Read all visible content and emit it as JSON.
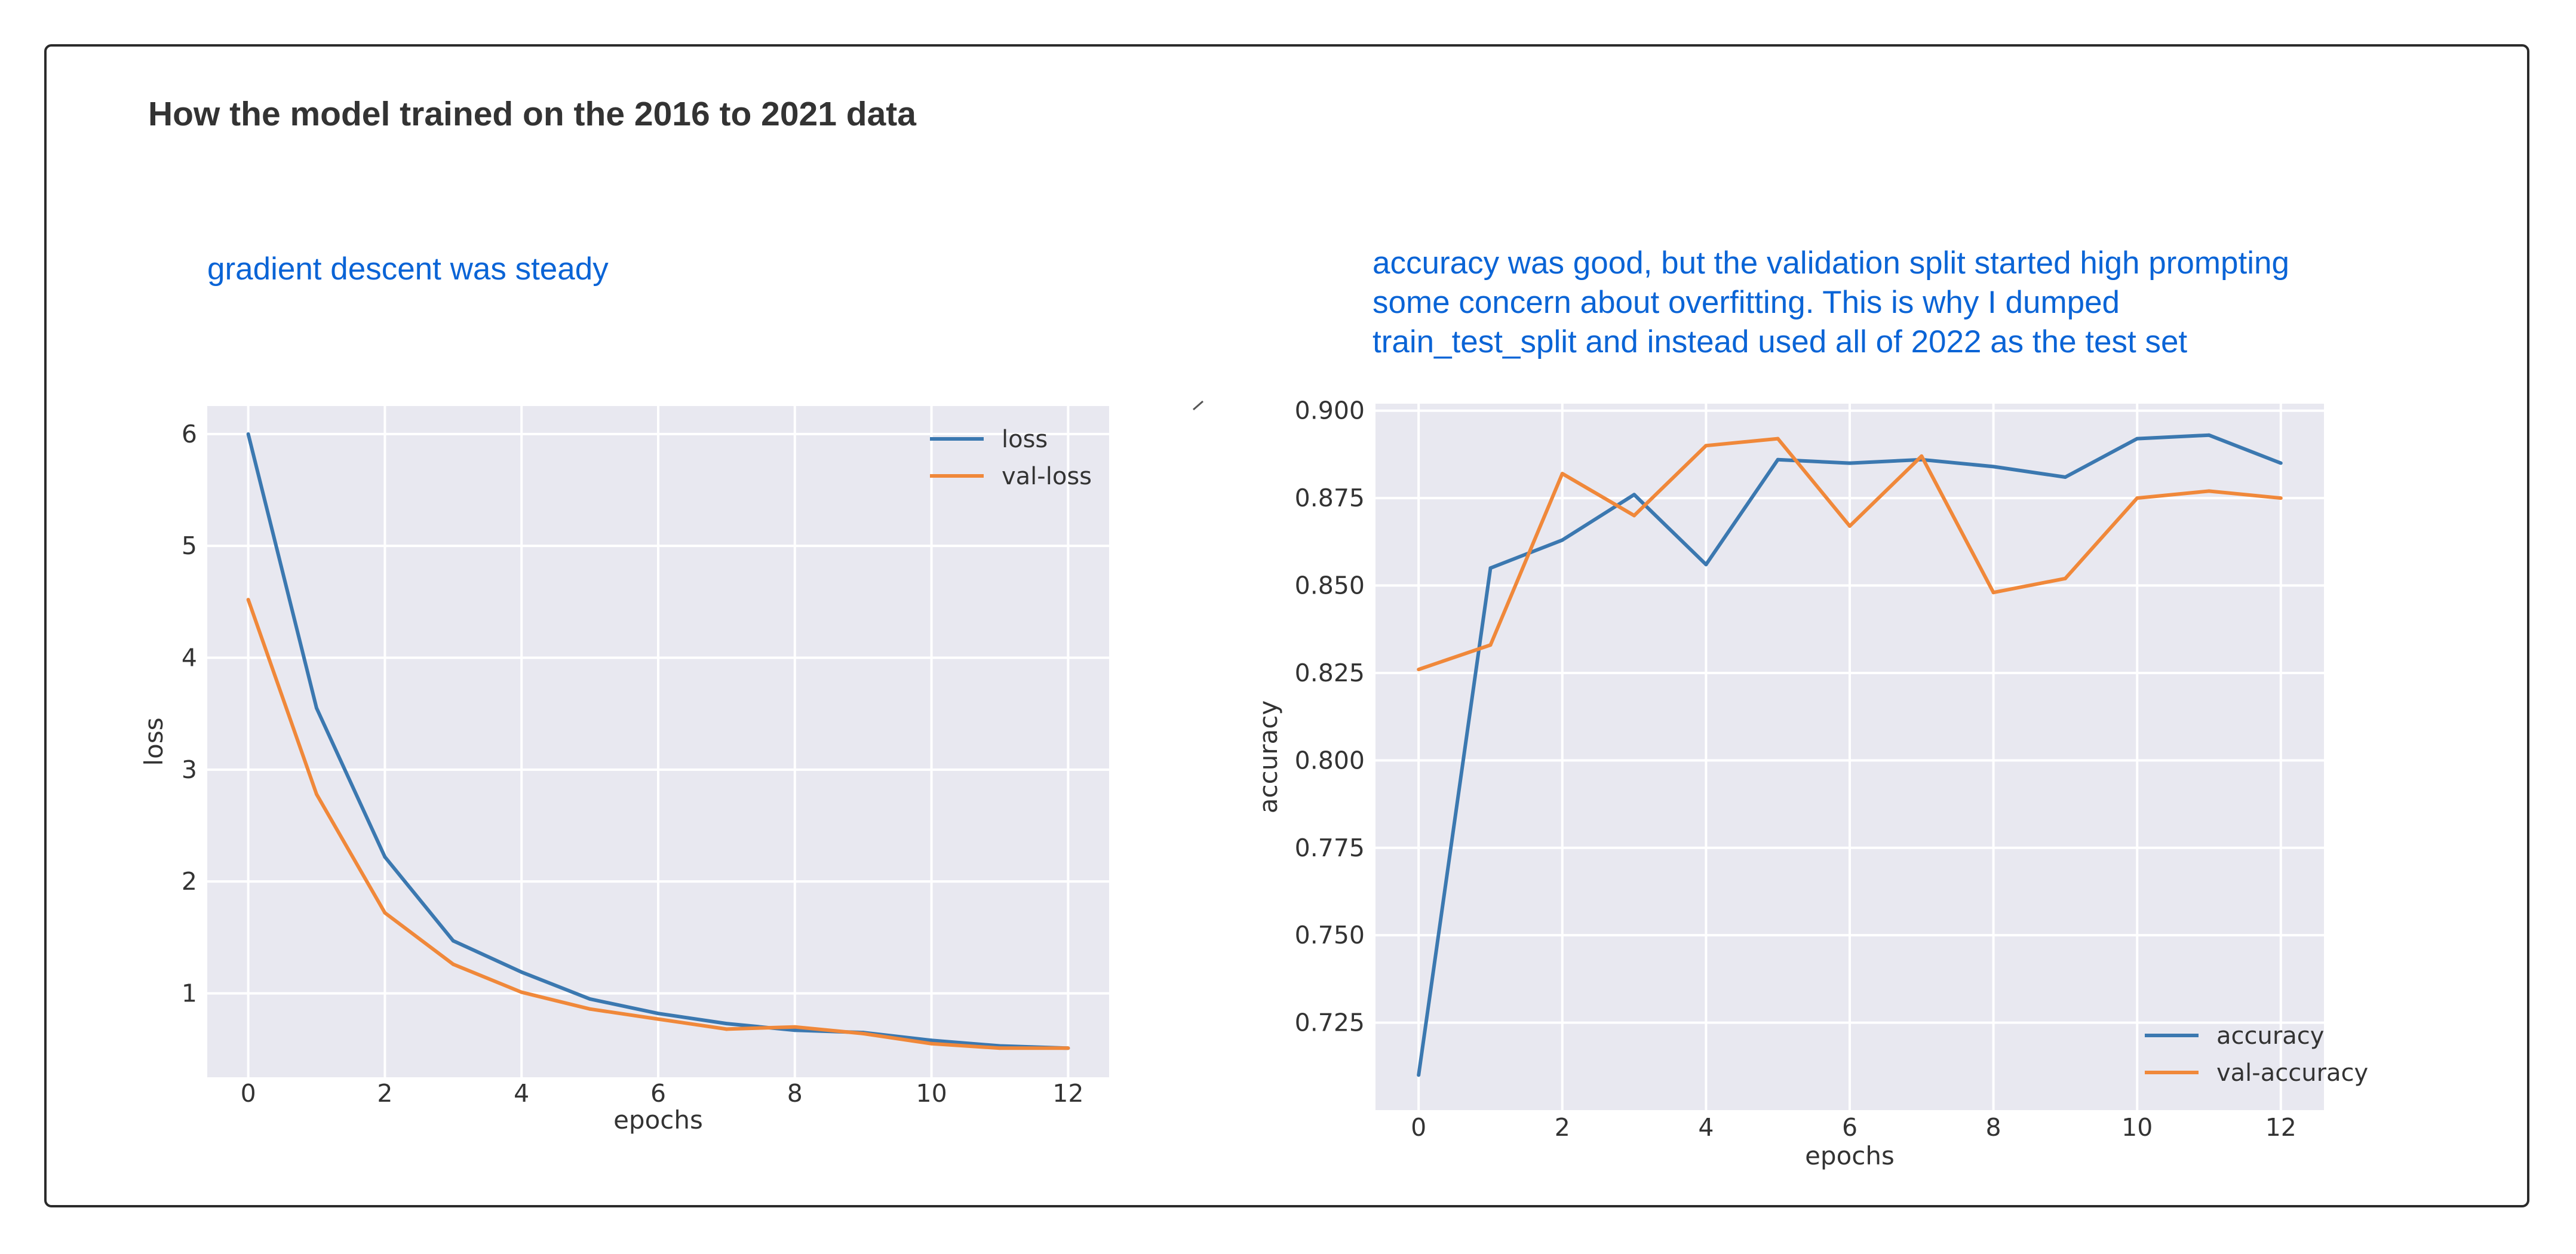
{
  "page": {
    "title": "How the model trained on the 2016 to 2021 data",
    "left_note": "gradient descent was steady",
    "right_note_lines": [
      "accuracy was good, but the validation split started high prompting",
      "some concern about overfitting.  This is why I dumped",
      "train_test_split and instead used all of 2022 as the test set"
    ]
  },
  "colors": {
    "series1": "#3b78b0",
    "series2": "#f0883a",
    "plot_bg": "#e8e8f0",
    "grid": "#ffffff"
  },
  "chart_data": [
    {
      "type": "line",
      "title": "",
      "xlabel": "epochs",
      "ylabel": "loss",
      "x": [
        0,
        1,
        2,
        3,
        4,
        5,
        6,
        7,
        8,
        9,
        10,
        11,
        12
      ],
      "xlim": [
        -0.6,
        12.6
      ],
      "ylim": [
        0.25,
        6.25
      ],
      "xticks": [
        "0",
        "2",
        "4",
        "6",
        "8",
        "10",
        "12"
      ],
      "yticks": [
        "1",
        "2",
        "3",
        "4",
        "5",
        "6"
      ],
      "legend_position": "top-right",
      "series": [
        {
          "name": "loss",
          "values": [
            6.0,
            3.55,
            2.22,
            1.47,
            1.19,
            0.95,
            0.82,
            0.73,
            0.67,
            0.65,
            0.58,
            0.53,
            0.51
          ]
        },
        {
          "name": "val-loss",
          "values": [
            4.52,
            2.78,
            1.72,
            1.26,
            1.01,
            0.86,
            0.77,
            0.68,
            0.7,
            0.64,
            0.55,
            0.51,
            0.51
          ]
        }
      ]
    },
    {
      "type": "line",
      "title": "",
      "xlabel": "epochs",
      "ylabel": "accuracy",
      "x": [
        0,
        1,
        2,
        3,
        4,
        5,
        6,
        7,
        8,
        9,
        10,
        11,
        12
      ],
      "xlim": [
        -0.6,
        12.6
      ],
      "ylim": [
        0.7,
        0.902
      ],
      "xticks": [
        "0",
        "2",
        "4",
        "6",
        "8",
        "10",
        "12"
      ],
      "yticks": [
        "0.725",
        "0.750",
        "0.775",
        "0.800",
        "0.825",
        "0.850",
        "0.875",
        "0.900"
      ],
      "legend_position": "bottom-right",
      "series": [
        {
          "name": "accuracy",
          "values": [
            0.71,
            0.855,
            0.863,
            0.876,
            0.856,
            0.886,
            0.885,
            0.886,
            0.884,
            0.881,
            0.892,
            0.893,
            0.885
          ]
        },
        {
          "name": "val-accuracy",
          "values": [
            0.826,
            0.833,
            0.882,
            0.87,
            0.89,
            0.892,
            0.867,
            0.887,
            0.848,
            0.852,
            0.875,
            0.877,
            0.875
          ]
        }
      ]
    }
  ]
}
